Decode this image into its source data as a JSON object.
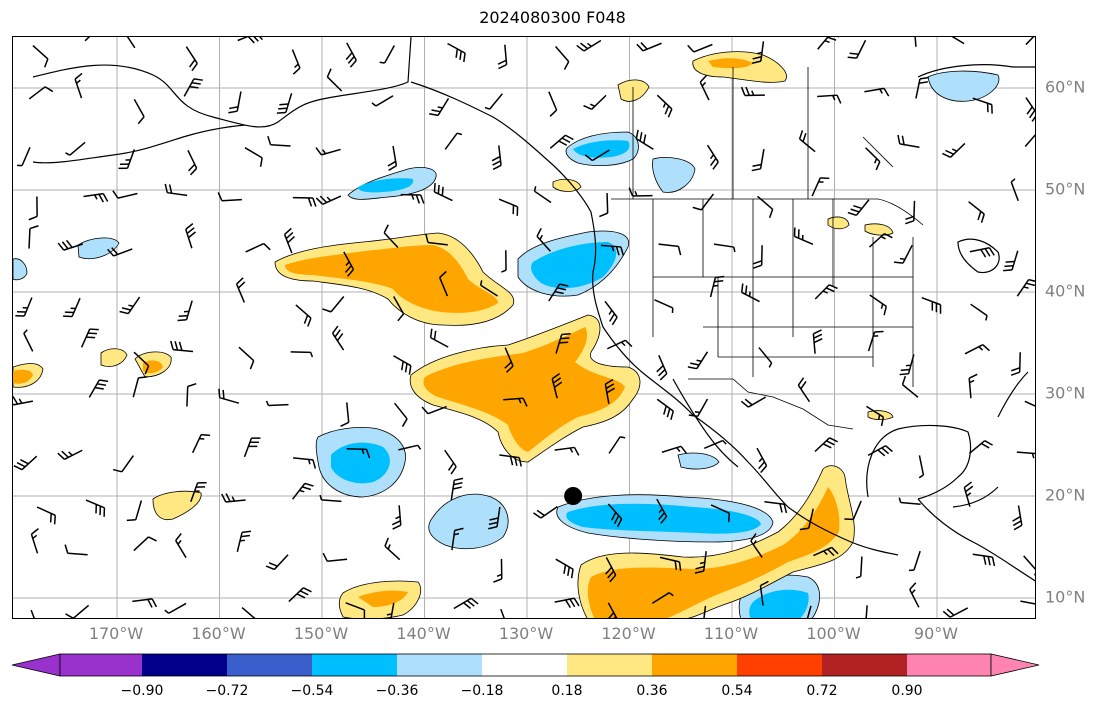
{
  "title": "2024080300 F048",
  "lon_labels": [
    "170°W",
    "160°W",
    "150°W",
    "140°W",
    "130°W",
    "120°W",
    "110°W",
    "100°W",
    "90°W"
  ],
  "lat_labels": [
    "60°N",
    "50°N",
    "40°N",
    "30°N",
    "20°N",
    "10°N"
  ],
  "colorbar": {
    "ticks": [
      "−0.90",
      "−0.72",
      "−0.54",
      "−0.36",
      "−0.18",
      "0.18",
      "0.36",
      "0.54",
      "0.72",
      "0.90"
    ],
    "colors": [
      "#9932cc",
      "#00008b",
      "#3a5fcd",
      "#00bfff",
      "#aee0fb",
      "#ffffff",
      "#ffe882",
      "#ffa500",
      "#ff4000",
      "#b22222",
      "#ff85b0"
    ]
  },
  "marker": {
    "label": "point",
    "lat": 20,
    "lon": -125.5,
    "color": "#000000"
  },
  "anomaly_regions": [
    {
      "name": "cool-central-pacific",
      "level": "−0.36"
    },
    {
      "name": "cool-north-baja",
      "level": "−0.54"
    },
    {
      "name": "cool-tropical-east-pacific",
      "level": "−0.54"
    },
    {
      "name": "warm-northeast-pacific",
      "level": "0.36"
    },
    {
      "name": "warm-subtropical-pacific",
      "level": "0.36"
    },
    {
      "name": "warm-itcz-band",
      "level": "0.36"
    }
  ],
  "legend_bounds": {
    "left_arrow": "extend-min",
    "right_arrow": "extend-max"
  }
}
